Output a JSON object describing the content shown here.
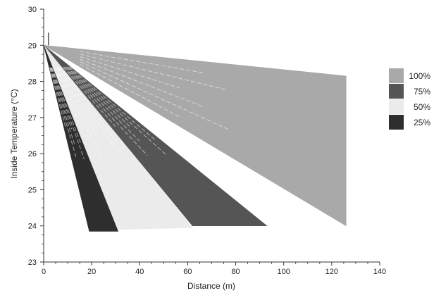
{
  "chart_data": {
    "type": "area",
    "title": "",
    "xlabel": "Distance (m)",
    "ylabel": "Inside Temperature (°C)",
    "xlim": [
      0,
      140
    ],
    "ylim": [
      23,
      30
    ],
    "x_ticks": [
      "0",
      "20",
      "40",
      "60",
      "80",
      "100",
      "120",
      "140"
    ],
    "y_ticks": [
      "23",
      "24",
      "25",
      "26",
      "27",
      "28",
      "29",
      "30"
    ],
    "grid": false,
    "legend_position": "right",
    "series": [
      {
        "name": "100%",
        "color": "#a9a9a9",
        "start": [
          0,
          29.0
        ],
        "upper_end": [
          126,
          28.15
        ],
        "lower_end": [
          126,
          24.0
        ]
      },
      {
        "name": "75%",
        "color": "#555555",
        "start": [
          0,
          29.0
        ],
        "upper_end": [
          93,
          24.0
        ],
        "lower_end": [
          62,
          24.0
        ]
      },
      {
        "name": "50%",
        "color": "#ebebeb",
        "start": [
          0,
          29.0
        ],
        "upper_end": [
          62,
          23.95
        ],
        "lower_end": [
          31,
          23.9
        ]
      },
      {
        "name": "25%",
        "color": "#2e2e2e",
        "start": [
          0,
          29.0
        ],
        "upper_end": [
          31,
          23.85
        ],
        "lower_end": [
          19,
          23.85
        ]
      }
    ]
  }
}
